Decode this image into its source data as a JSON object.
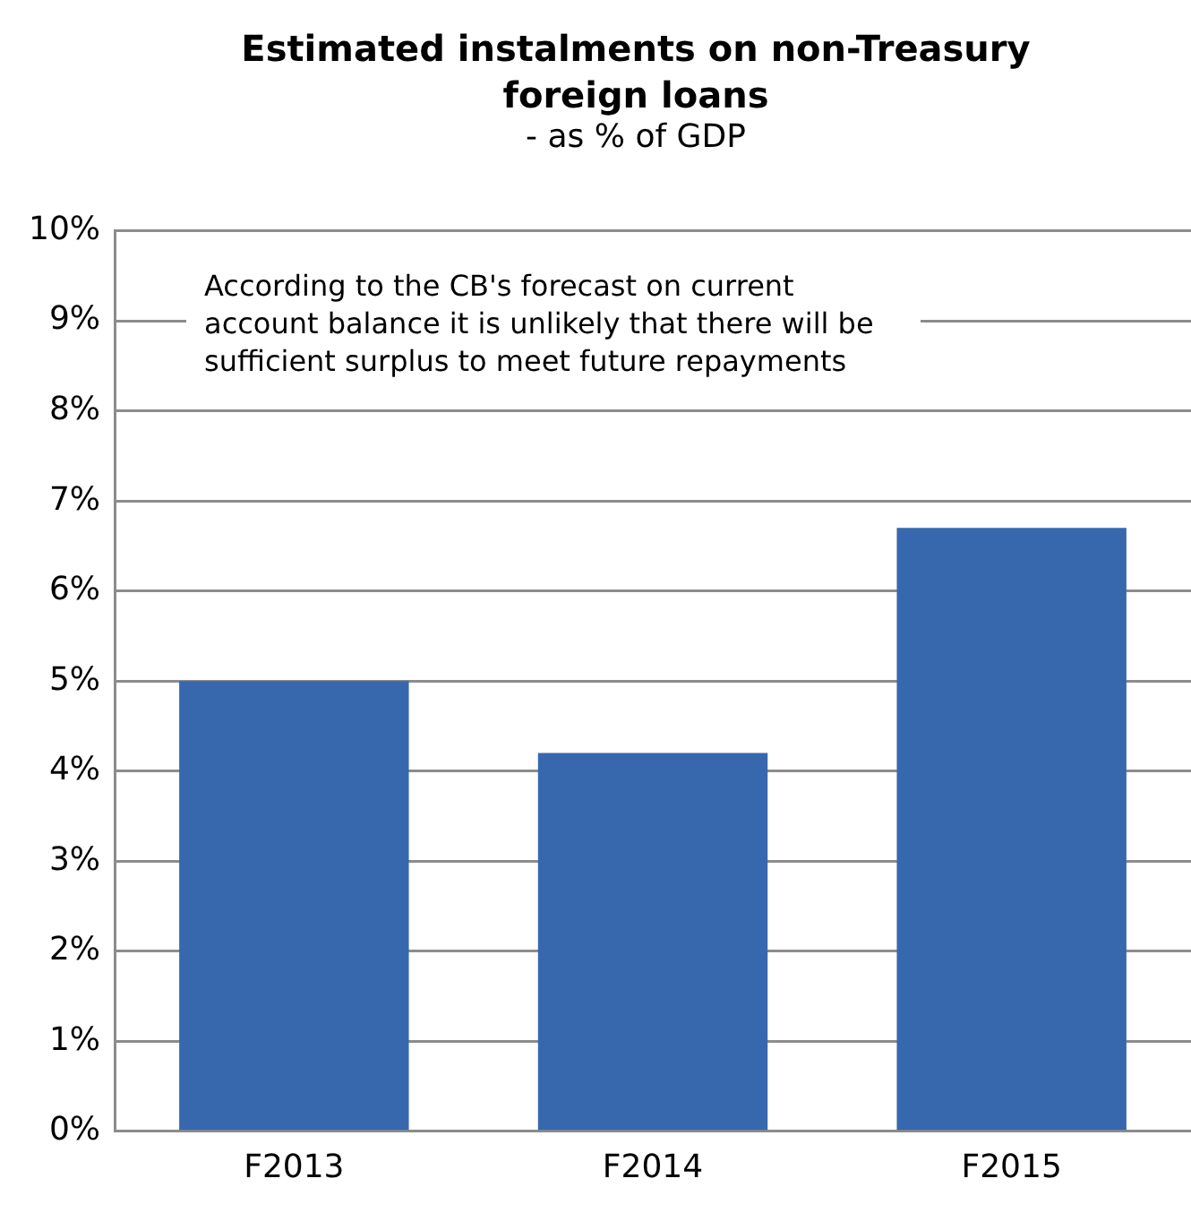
{
  "chart_data": {
    "type": "bar",
    "title": "Estimated instalments on non-Treasury foreign loans",
    "subtitle": "- as % of GDP",
    "categories": [
      "F2013",
      "F2014",
      "F2015"
    ],
    "values": [
      5.0,
      4.2,
      6.7
    ],
    "color": "#3768ae",
    "ylim": [
      0,
      10
    ],
    "yticks": [
      {
        "value": 0,
        "label": "0%"
      },
      {
        "value": 1,
        "label": "1%"
      },
      {
        "value": 2,
        "label": "2%"
      },
      {
        "value": 3,
        "label": "3%"
      },
      {
        "value": 4,
        "label": "4%"
      },
      {
        "value": 5,
        "label": "5%"
      },
      {
        "value": 6,
        "label": "6%"
      },
      {
        "value": 7,
        "label": "7%"
      },
      {
        "value": 8,
        "label": "8%"
      },
      {
        "value": 9,
        "label": "9%"
      },
      {
        "value": 10,
        "label": "10%"
      }
    ],
    "grid": "y",
    "annotations": [
      "According to the CB's forecast on current account balance it is unlikely that there will be sufficient surplus to meet future repayments"
    ]
  }
}
